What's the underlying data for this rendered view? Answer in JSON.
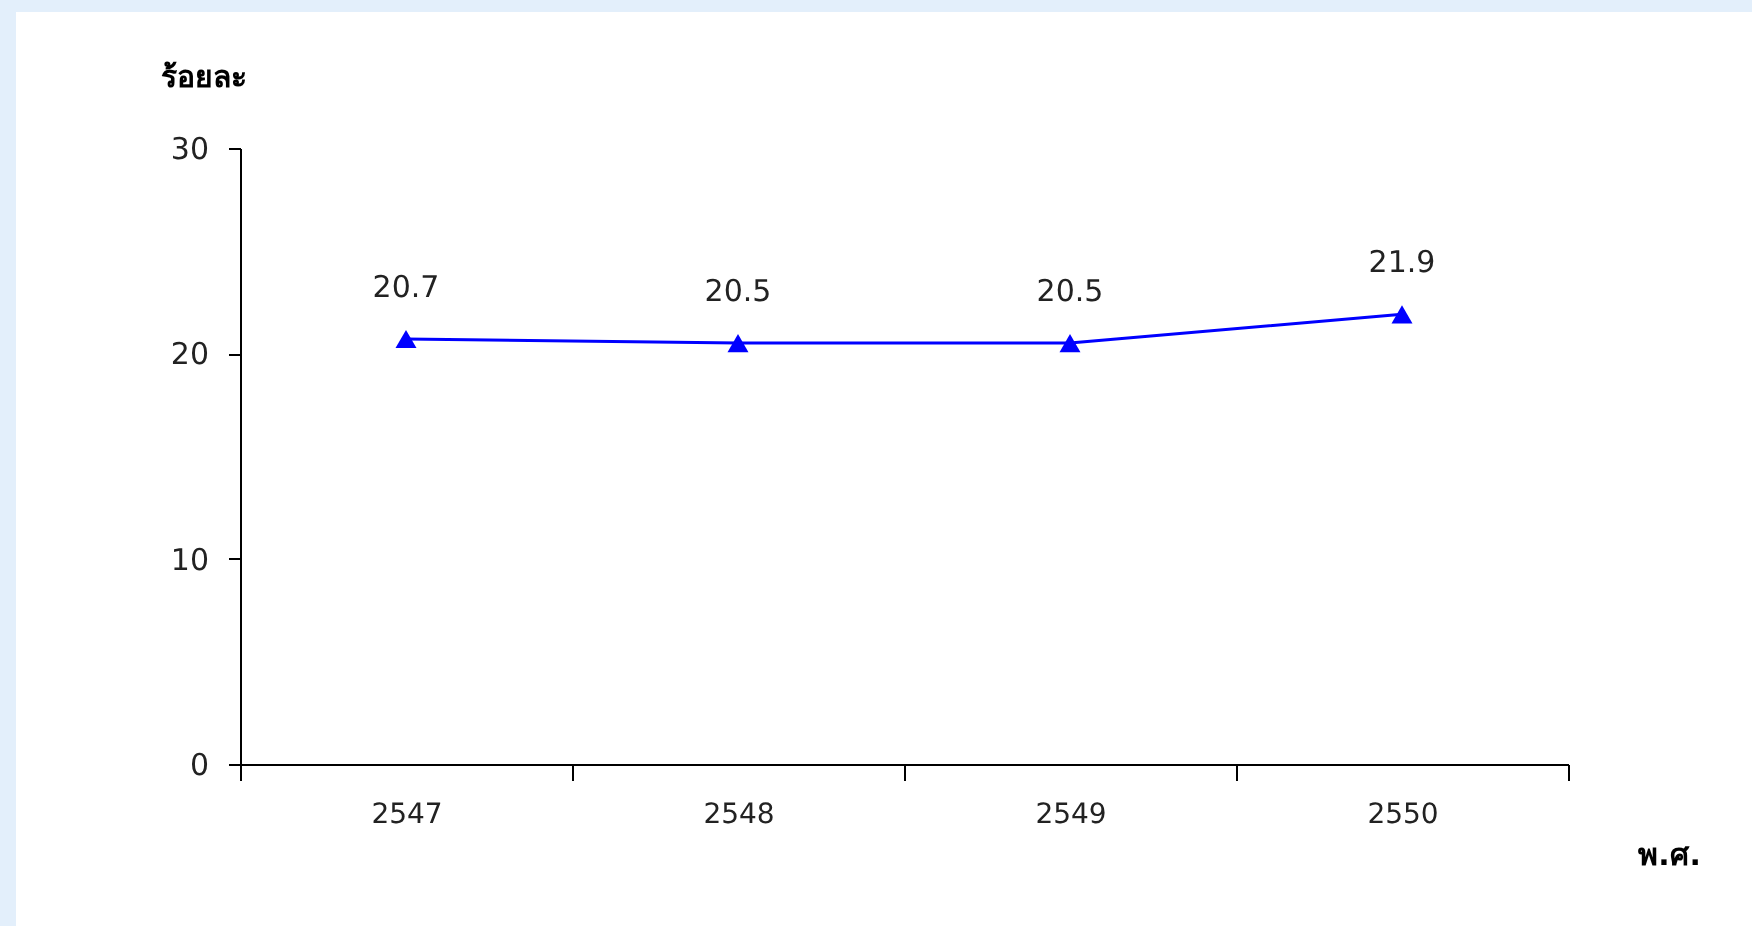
{
  "chart_data": {
    "type": "line",
    "xlabel": "พ.ศ.",
    "ylabel": "ร้อยละ",
    "categories": [
      "2547",
      "2548",
      "2549",
      "2550"
    ],
    "series": [
      {
        "color": "#0000ff",
        "values": [
          20.7,
          20.5,
          20.5,
          21.9
        ]
      }
    ],
    "ylim": [
      0,
      30
    ],
    "yticks": [
      0,
      10,
      20,
      30
    ],
    "marker": "triangle",
    "data_labels": true,
    "grid": false
  }
}
